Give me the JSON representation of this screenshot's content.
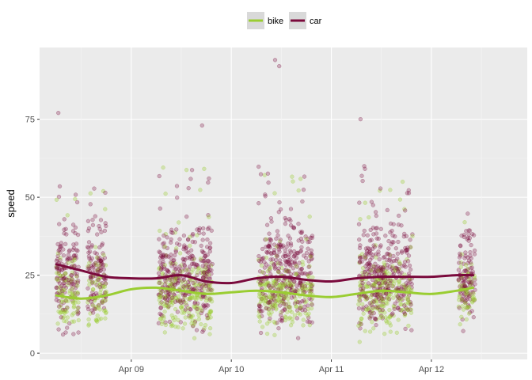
{
  "chart_data": {
    "type": "scatter",
    "title": "",
    "xlabel": "",
    "ylabel": "speed",
    "ylim": [
      -2,
      98
    ],
    "y_ticks": [
      0,
      25,
      50,
      75
    ],
    "x_ticks": [
      "Apr 09",
      "Apr 10",
      "Apr 11",
      "Apr 12"
    ],
    "x_unit": "days",
    "xlim": [
      "2012-04-08T02:00",
      "2012-04-12T23:00"
    ],
    "grid": true,
    "legend_position": "top",
    "legend": [
      {
        "name": "bike",
        "color": "#9acd32"
      },
      {
        "name": "car",
        "color": "#7a0a3c"
      }
    ],
    "point_clusters": [
      {
        "x_start": "2012-04-08T06:00",
        "x_end": "2012-04-08T11:30"
      },
      {
        "x_start": "2012-04-08T13:30",
        "x_end": "2012-04-08T18:00"
      },
      {
        "x_start": "2012-04-09T06:30",
        "x_end": "2012-04-09T19:30"
      },
      {
        "x_start": "2012-04-10T06:30",
        "x_end": "2012-04-10T19:30"
      },
      {
        "x_start": "2012-04-11T06:30",
        "x_end": "2012-04-11T19:30"
      },
      {
        "x_start": "2012-04-12T06:30",
        "x_end": "2012-04-12T10:30"
      }
    ],
    "outliers": [
      {
        "x": "2012-04-08T06:30",
        "y": 77
      },
      {
        "x": "2012-04-09T17:00",
        "y": 73
      },
      {
        "x": "2012-04-10T10:30",
        "y": 94
      },
      {
        "x": "2012-04-10T11:30",
        "y": 92
      },
      {
        "x": "2012-04-11T07:00",
        "y": 75
      }
    ],
    "series": [
      {
        "name": "bike",
        "color": "#9acd32",
        "smooth_x": [
          "2012-04-08T06:00",
          "2012-04-08T12:00",
          "2012-04-08T18:00",
          "2012-04-09T00:00",
          "2012-04-09T06:00",
          "2012-04-09T12:00",
          "2012-04-09T18:00",
          "2012-04-10T00:00",
          "2012-04-10T06:00",
          "2012-04-10T12:00",
          "2012-04-10T18:00",
          "2012-04-11T00:00",
          "2012-04-11T06:00",
          "2012-04-11T12:00",
          "2012-04-11T18:00",
          "2012-04-12T00:00",
          "2012-04-12T06:00",
          "2012-04-12T10:00"
        ],
        "smooth_y": [
          18.5,
          17.5,
          18.5,
          20.5,
          21,
          20,
          19,
          19.5,
          20,
          19.5,
          18.5,
          18,
          19,
          20,
          19.5,
          19,
          20,
          21
        ]
      },
      {
        "name": "car",
        "color": "#7a0a3c",
        "smooth_x": [
          "2012-04-08T06:00",
          "2012-04-08T12:00",
          "2012-04-08T18:00",
          "2012-04-09T00:00",
          "2012-04-09T06:00",
          "2012-04-09T12:00",
          "2012-04-09T18:00",
          "2012-04-10T00:00",
          "2012-04-10T06:00",
          "2012-04-10T12:00",
          "2012-04-10T18:00",
          "2012-04-11T00:00",
          "2012-04-11T06:00",
          "2012-04-11T12:00",
          "2012-04-11T18:00",
          "2012-04-12T00:00",
          "2012-04-12T06:00",
          "2012-04-12T10:00"
        ],
        "smooth_y": [
          28.5,
          26.5,
          24.5,
          24,
          24,
          25,
          23,
          22.5,
          24,
          24.5,
          23.5,
          23,
          24,
          24.5,
          24.5,
          24.5,
          25,
          25
        ]
      }
    ]
  }
}
